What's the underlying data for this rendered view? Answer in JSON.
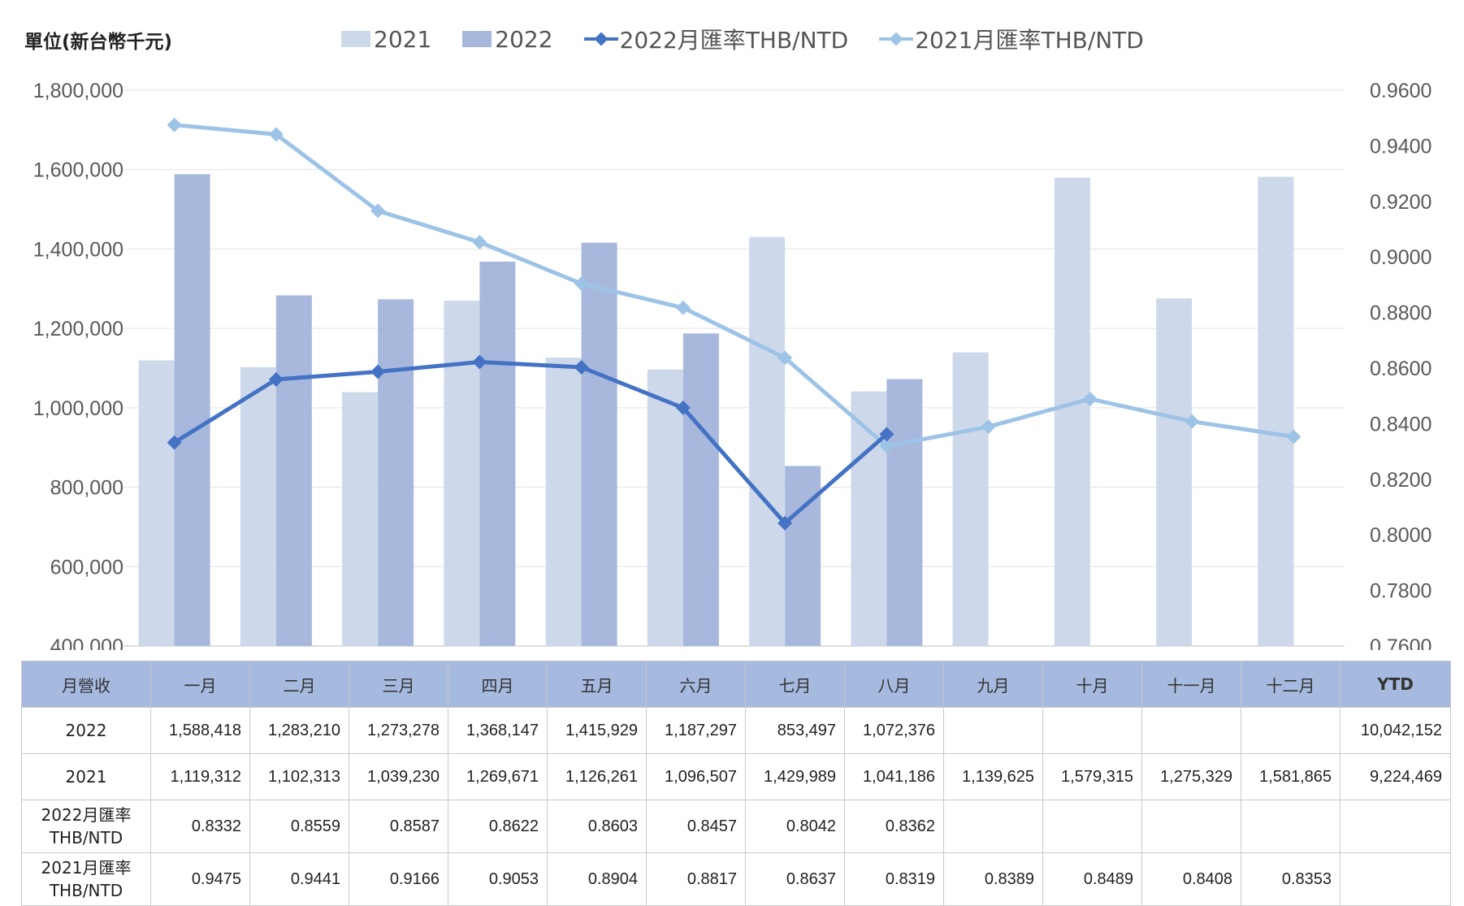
{
  "chart_data": {
    "type": "bar",
    "unit_label": "單位(新台幣千元)",
    "categories": [
      "一月",
      "二月",
      "三月",
      "四月",
      "五月",
      "六月",
      "七月",
      "八月",
      "九月",
      "十月",
      "十一月",
      "十二月"
    ],
    "y_left": {
      "min": 400000,
      "max": 1800000,
      "step": 200000,
      "ticks": [
        "400,000",
        "600,000",
        "800,000",
        "1,000,000",
        "1,200,000",
        "1,400,000",
        "1,600,000",
        "1,800,000"
      ]
    },
    "y_right": {
      "min": 0.76,
      "max": 0.96,
      "step": 0.02,
      "ticks": [
        "0.7600",
        "0.7800",
        "0.8000",
        "0.8200",
        "0.8400",
        "0.8600",
        "0.8800",
        "0.9000",
        "0.9200",
        "0.9400",
        "0.9600"
      ]
    },
    "grid": true,
    "legend_position": "top",
    "bar_series": [
      {
        "name": "2021",
        "color": "#cdd8ea",
        "values": [
          1119312,
          1102313,
          1039230,
          1269671,
          1126261,
          1096507,
          1429989,
          1041186,
          1139625,
          1579315,
          1275329,
          1581865
        ]
      },
      {
        "name": "2022",
        "color": "#a7b8dc",
        "values": [
          1588418,
          1283210,
          1273278,
          1368147,
          1415929,
          1187297,
          853497,
          1072376,
          null,
          null,
          null,
          null
        ]
      }
    ],
    "line_series": [
      {
        "name": "2022月匯率THB/NTD",
        "color": "#4472c4",
        "values": [
          0.8332,
          0.8559,
          0.8587,
          0.8622,
          0.8603,
          0.8457,
          0.8042,
          0.8362,
          null,
          null,
          null,
          null
        ]
      },
      {
        "name": "2021月匯率THB/NTD",
        "color": "#9dc3e6",
        "values": [
          0.9475,
          0.9441,
          0.9166,
          0.9053,
          0.8904,
          0.8817,
          0.8637,
          0.8319,
          0.8389,
          0.8489,
          0.8408,
          0.8353
        ]
      }
    ]
  },
  "table": {
    "header_first": "月營收",
    "headers": [
      "一月",
      "二月",
      "三月",
      "四月",
      "五月",
      "六月",
      "七月",
      "八月",
      "九月",
      "十月",
      "十一月",
      "十二月"
    ],
    "header_ytd": "YTD",
    "rows": [
      {
        "label": "2022",
        "cells": [
          "1,588,418",
          "1,283,210",
          "1,273,278",
          "1,368,147",
          "1,415,929",
          "1,187,297",
          "853,497",
          "1,072,376",
          "",
          "",
          "",
          ""
        ],
        "ytd": "10,042,152"
      },
      {
        "label": "2021",
        "cells": [
          "1,119,312",
          "1,102,313",
          "1,039,230",
          "1,269,671",
          "1,126,261",
          "1,096,507",
          "1,429,989",
          "1,041,186",
          "1,139,625",
          "1,579,315",
          "1,275,329",
          "1,581,865"
        ],
        "ytd": "9,224,469"
      },
      {
        "label": "2022月匯率\nTHB/NTD",
        "cells": [
          "0.8332",
          "0.8559",
          "0.8587",
          "0.8622",
          "0.8603",
          "0.8457",
          "0.8042",
          "0.8362",
          "",
          "",
          "",
          ""
        ],
        "ytd": ""
      },
      {
        "label": "2021月匯率\nTHB/NTD",
        "cells": [
          "0.9475",
          "0.9441",
          "0.9166",
          "0.9053",
          "0.8904",
          "0.8817",
          "0.8637",
          "0.8319",
          "0.8389",
          "0.8489",
          "0.8408",
          "0.8353"
        ],
        "ytd": ""
      }
    ]
  }
}
